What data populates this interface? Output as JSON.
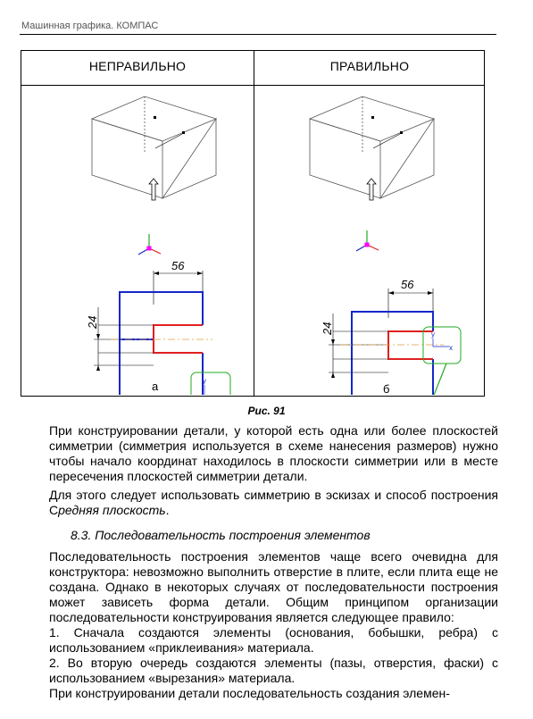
{
  "header": {
    "running_title": "Машинная графика. КОМПАС"
  },
  "figure": {
    "left_title": "НЕПРАВИЛЬНО",
    "right_title": "ПРАВИЛЬНО",
    "left_sublabel": "а",
    "right_sublabel": "б",
    "dim_width": "56",
    "dim_height": "24",
    "caption": "Рис. 91"
  },
  "body": {
    "para1": "При конструировании детали, у которой есть одна или более плоскостей симметрии (симметрия используется в схеме нанесения размеров) нужно чтобы начало координат находилось в плоскости симметрии или в месте пересечения плоскостей симметрии детали.",
    "para2_pre": "Для этого следует использовать симметрию в эскизах и способ построения С",
    "para2_italic": "редняя плоскость",
    "para2_post": ".",
    "section_heading": "8.3. Последовательность построения элементов",
    "para3": "Последовательность построения элементов чаще всего очевидна для конструктора: невозможно выполнить отверстие в плите, если плита еще не создана. Однако в некоторых случаях от последовательности построения может зависеть форма детали. Общим принципом организации последовательности конструирования является следующее правило:",
    "rule1": "1. Сначала создаются элементы (основания, бобышки, ребра) с использованием «приклеивания» материала.",
    "rule2": "2. Во вторую очередь создаются элементы (пазы, отверстия, фаски) с использованием «вырезания» материала.",
    "para4": "При конструировании детали последовательность создания элемен-"
  },
  "colors": {
    "outline": "#1428c8",
    "cut": "#e02020",
    "axis_box": "#22aa22",
    "axis_line": "#e0a040"
  }
}
